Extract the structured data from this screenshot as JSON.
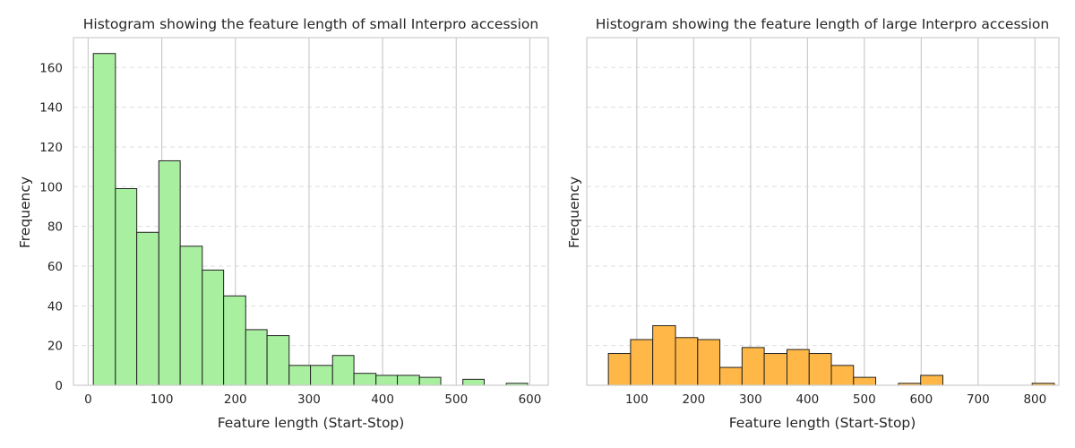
{
  "chart_data": [
    {
      "type": "bar",
      "title": "Histogram showing the feature length of small Interpro accession",
      "xlabel": "Feature length (Start-Stop)",
      "ylabel": "Frequency",
      "color": "#a8f0a0",
      "xlim": [
        -20,
        625
      ],
      "ylim": [
        0,
        175
      ],
      "xticks": [
        0,
        100,
        200,
        300,
        400,
        500,
        600
      ],
      "yticks": [
        0,
        20,
        40,
        60,
        80,
        100,
        120,
        140,
        160
      ],
      "show_ytick_labels": true,
      "grid": true,
      "bins": [
        {
          "x0": 7,
          "x1": 37,
          "value": 167
        },
        {
          "x0": 37,
          "x1": 66,
          "value": 99
        },
        {
          "x0": 66,
          "x1": 96,
          "value": 77
        },
        {
          "x0": 96,
          "x1": 125,
          "value": 113
        },
        {
          "x0": 125,
          "x1": 155,
          "value": 70
        },
        {
          "x0": 155,
          "x1": 184,
          "value": 58
        },
        {
          "x0": 184,
          "x1": 214,
          "value": 45
        },
        {
          "x0": 214,
          "x1": 243,
          "value": 28
        },
        {
          "x0": 243,
          "x1": 273,
          "value": 25
        },
        {
          "x0": 273,
          "x1": 302,
          "value": 10
        },
        {
          "x0": 302,
          "x1": 332,
          "value": 10
        },
        {
          "x0": 332,
          "x1": 361,
          "value": 15
        },
        {
          "x0": 361,
          "x1": 391,
          "value": 6
        },
        {
          "x0": 391,
          "x1": 420,
          "value": 5
        },
        {
          "x0": 420,
          "x1": 450,
          "value": 5
        },
        {
          "x0": 450,
          "x1": 479,
          "value": 4
        },
        {
          "x0": 479,
          "x1": 509,
          "value": 0
        },
        {
          "x0": 509,
          "x1": 538,
          "value": 3
        },
        {
          "x0": 538,
          "x1": 568,
          "value": 0
        },
        {
          "x0": 568,
          "x1": 597,
          "value": 1
        }
      ]
    },
    {
      "type": "bar",
      "title": "Histogram showing the feature length of large Interpro accession",
      "xlabel": "Feature length (Start-Stop)",
      "ylabel": "Frequency",
      "color": "#ffb847",
      "xlim": [
        12,
        842
      ],
      "ylim": [
        0,
        175
      ],
      "xticks": [
        100,
        200,
        300,
        400,
        500,
        600,
        700,
        800
      ],
      "yticks": [
        0,
        20,
        40,
        60,
        80,
        100,
        120,
        140,
        160
      ],
      "show_ytick_labels": false,
      "grid": true,
      "bins": [
        {
          "x0": 50,
          "x1": 89,
          "value": 16
        },
        {
          "x0": 89,
          "x1": 128,
          "value": 23
        },
        {
          "x0": 128,
          "x1": 168,
          "value": 30
        },
        {
          "x0": 168,
          "x1": 207,
          "value": 24
        },
        {
          "x0": 207,
          "x1": 246,
          "value": 23
        },
        {
          "x0": 246,
          "x1": 285,
          "value": 9
        },
        {
          "x0": 285,
          "x1": 324,
          "value": 19
        },
        {
          "x0": 324,
          "x1": 364,
          "value": 16
        },
        {
          "x0": 364,
          "x1": 403,
          "value": 18
        },
        {
          "x0": 403,
          "x1": 442,
          "value": 16
        },
        {
          "x0": 442,
          "x1": 481,
          "value": 10
        },
        {
          "x0": 481,
          "x1": 520,
          "value": 4
        },
        {
          "x0": 520,
          "x1": 560,
          "value": 0
        },
        {
          "x0": 560,
          "x1": 599,
          "value": 1
        },
        {
          "x0": 599,
          "x1": 638,
          "value": 5
        },
        {
          "x0": 638,
          "x1": 677,
          "value": 0
        },
        {
          "x0": 677,
          "x1": 716,
          "value": 0
        },
        {
          "x0": 716,
          "x1": 756,
          "value": 0
        },
        {
          "x0": 756,
          "x1": 795,
          "value": 0
        },
        {
          "x0": 795,
          "x1": 834,
          "value": 1
        }
      ]
    }
  ]
}
